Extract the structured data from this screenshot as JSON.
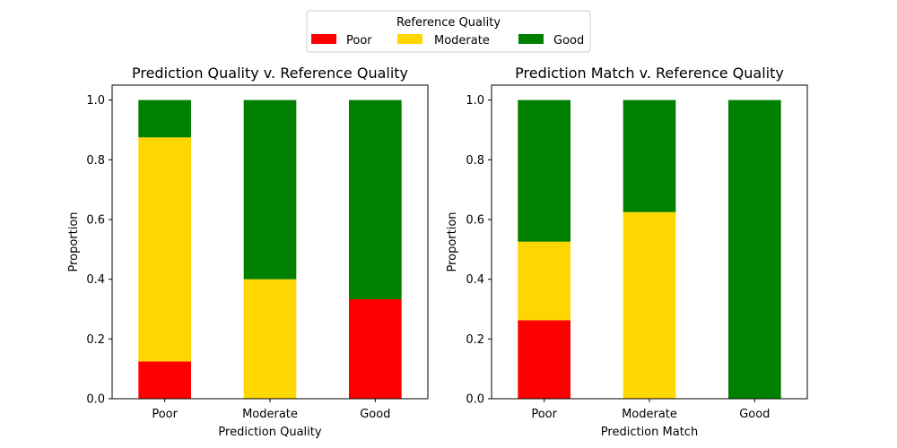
{
  "legend": {
    "title": "Reference Quality",
    "items": [
      {
        "label": "Poor",
        "color": "#ff0000"
      },
      {
        "label": "Moderate",
        "color": "#ffd700"
      },
      {
        "label": "Good",
        "color": "#008000"
      }
    ]
  },
  "chart_data": [
    {
      "type": "bar",
      "stacked": true,
      "title": "Prediction Quality v. Reference Quality",
      "xlabel": "Prediction Quality",
      "ylabel": "Proportion",
      "categories": [
        "Poor",
        "Moderate",
        "Good"
      ],
      "ylim": [
        0,
        1.05
      ],
      "yticks": [
        "0.0",
        "0.2",
        "0.4",
        "0.6",
        "0.8",
        "1.0"
      ],
      "series": [
        {
          "name": "Poor",
          "color": "#ff0000",
          "values": [
            0.125,
            0.0,
            0.333
          ]
        },
        {
          "name": "Moderate",
          "color": "#ffd700",
          "values": [
            0.75,
            0.4,
            0.0
          ]
        },
        {
          "name": "Good",
          "color": "#008000",
          "values": [
            0.125,
            0.6,
            0.667
          ]
        }
      ]
    },
    {
      "type": "bar",
      "stacked": true,
      "title": "Prediction Match v. Reference Quality",
      "xlabel": "Prediction Match",
      "ylabel": "Proportion",
      "categories": [
        "Poor",
        "Moderate",
        "Good"
      ],
      "ylim": [
        0,
        1.05
      ],
      "yticks": [
        "0.0",
        "0.2",
        "0.4",
        "0.6",
        "0.8",
        "1.0"
      ],
      "series": [
        {
          "name": "Poor",
          "color": "#ff0000",
          "values": [
            0.263,
            0.0,
            0.0
          ]
        },
        {
          "name": "Moderate",
          "color": "#ffd700",
          "values": [
            0.263,
            0.625,
            0.0
          ]
        },
        {
          "name": "Good",
          "color": "#008000",
          "values": [
            0.474,
            0.375,
            1.0
          ]
        }
      ]
    }
  ]
}
